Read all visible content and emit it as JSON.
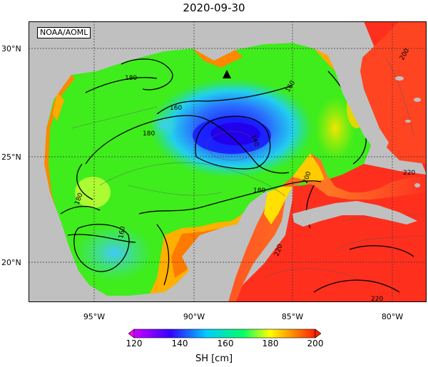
{
  "title": "2020-09-30",
  "credit": "NOAA/AOML",
  "lat_ticks": [
    "30°N",
    "25°N",
    "20°N"
  ],
  "lon_ticks": [
    "95°W",
    "90°W",
    "85°W",
    "80°W"
  ],
  "contour_labels": [
    "180",
    "160",
    "180",
    "140",
    "160",
    "180",
    "200",
    "180",
    "160",
    "200",
    "220",
    "220",
    "220"
  ],
  "colorbar": {
    "ticks": [
      "120",
      "140",
      "160",
      "180",
      "200"
    ],
    "label": "SH [cm]",
    "colors": [
      "#cc00ff",
      "#3300ff",
      "#00ccff",
      "#00ff66",
      "#ffff00",
      "#ff8800",
      "#ff2200"
    ]
  },
  "colors": {
    "land": "#c0c0c0",
    "warm": "#ff3322",
    "cool": "#1a2cff"
  }
}
